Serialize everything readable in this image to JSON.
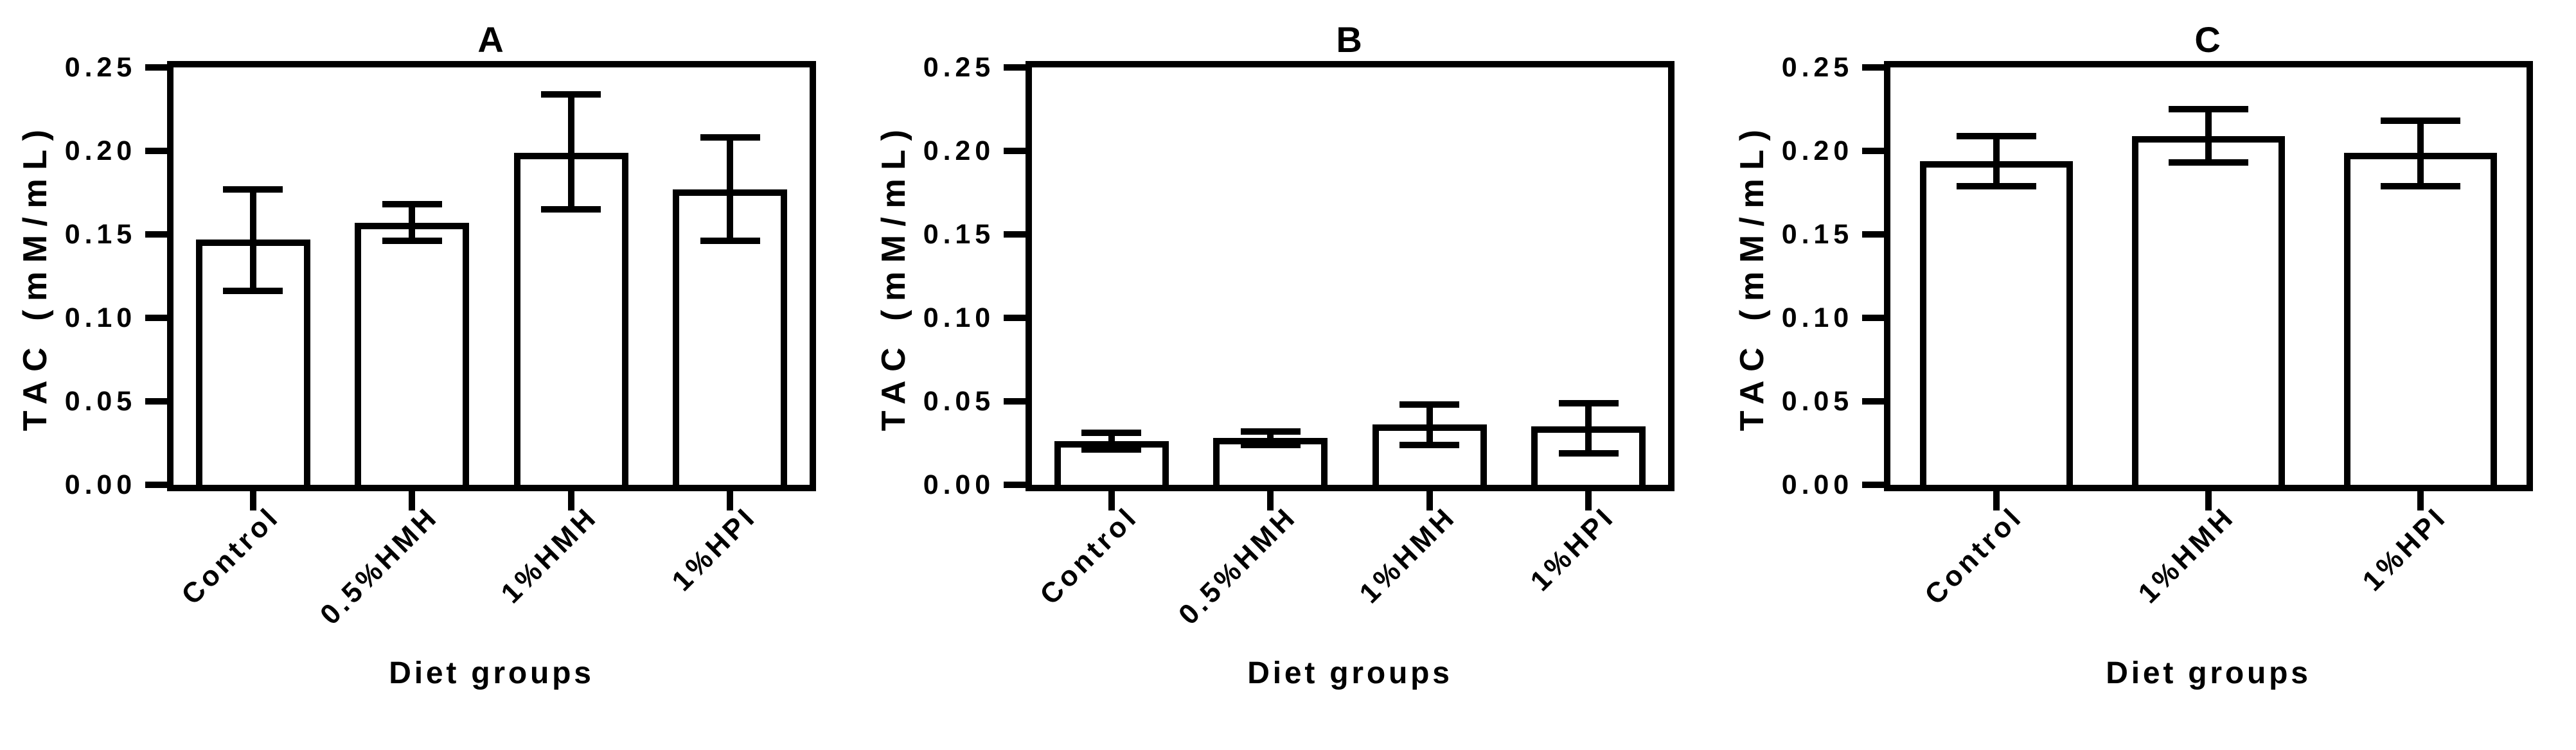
{
  "figure": {
    "background": "#ffffff",
    "ink_color": "#000000",
    "bar_fill": "#ffffff",
    "y_tick_labels": [
      "0.00",
      "0.05",
      "0.10",
      "0.15",
      "0.20",
      "0.25"
    ]
  },
  "chart_data": [
    {
      "type": "bar",
      "title": "A",
      "ylabel": "TAC (mM/mL)",
      "xlabel": "Diet groups",
      "ylim": [
        0,
        0.25
      ],
      "ytick_step": 0.05,
      "grid": false,
      "categories": [
        "Control",
        "0.5%HMH",
        "1%HMH",
        "1%HPI"
      ],
      "values": [
        0.147,
        0.157,
        0.199,
        0.177
      ],
      "error_low": [
        0.116,
        0.146,
        0.165,
        0.146
      ],
      "error_high": [
        0.177,
        0.168,
        0.234,
        0.208
      ]
    },
    {
      "type": "bar",
      "title": "B",
      "ylabel": "TAC (mM/mL)",
      "xlabel": "Diet groups",
      "ylim": [
        0,
        0.25
      ],
      "ytick_step": 0.05,
      "grid": false,
      "categories": [
        "Control",
        "0.5%HMH",
        "1%HMH",
        "1%HPI"
      ],
      "values": [
        0.026,
        0.028,
        0.036,
        0.035
      ],
      "error_low": [
        0.021,
        0.024,
        0.024,
        0.019
      ],
      "error_high": [
        0.031,
        0.032,
        0.048,
        0.049
      ]
    },
    {
      "type": "bar",
      "title": "C",
      "ylabel": "TAC (mM/mL)",
      "xlabel": "Diet groups",
      "ylim": [
        0,
        0.25
      ],
      "ytick_step": 0.05,
      "grid": false,
      "categories": [
        "Control",
        "1%HMH",
        "1%HPI"
      ],
      "values": [
        0.194,
        0.209,
        0.199
      ],
      "error_low": [
        0.179,
        0.193,
        0.179
      ],
      "error_high": [
        0.209,
        0.225,
        0.218
      ]
    }
  ]
}
